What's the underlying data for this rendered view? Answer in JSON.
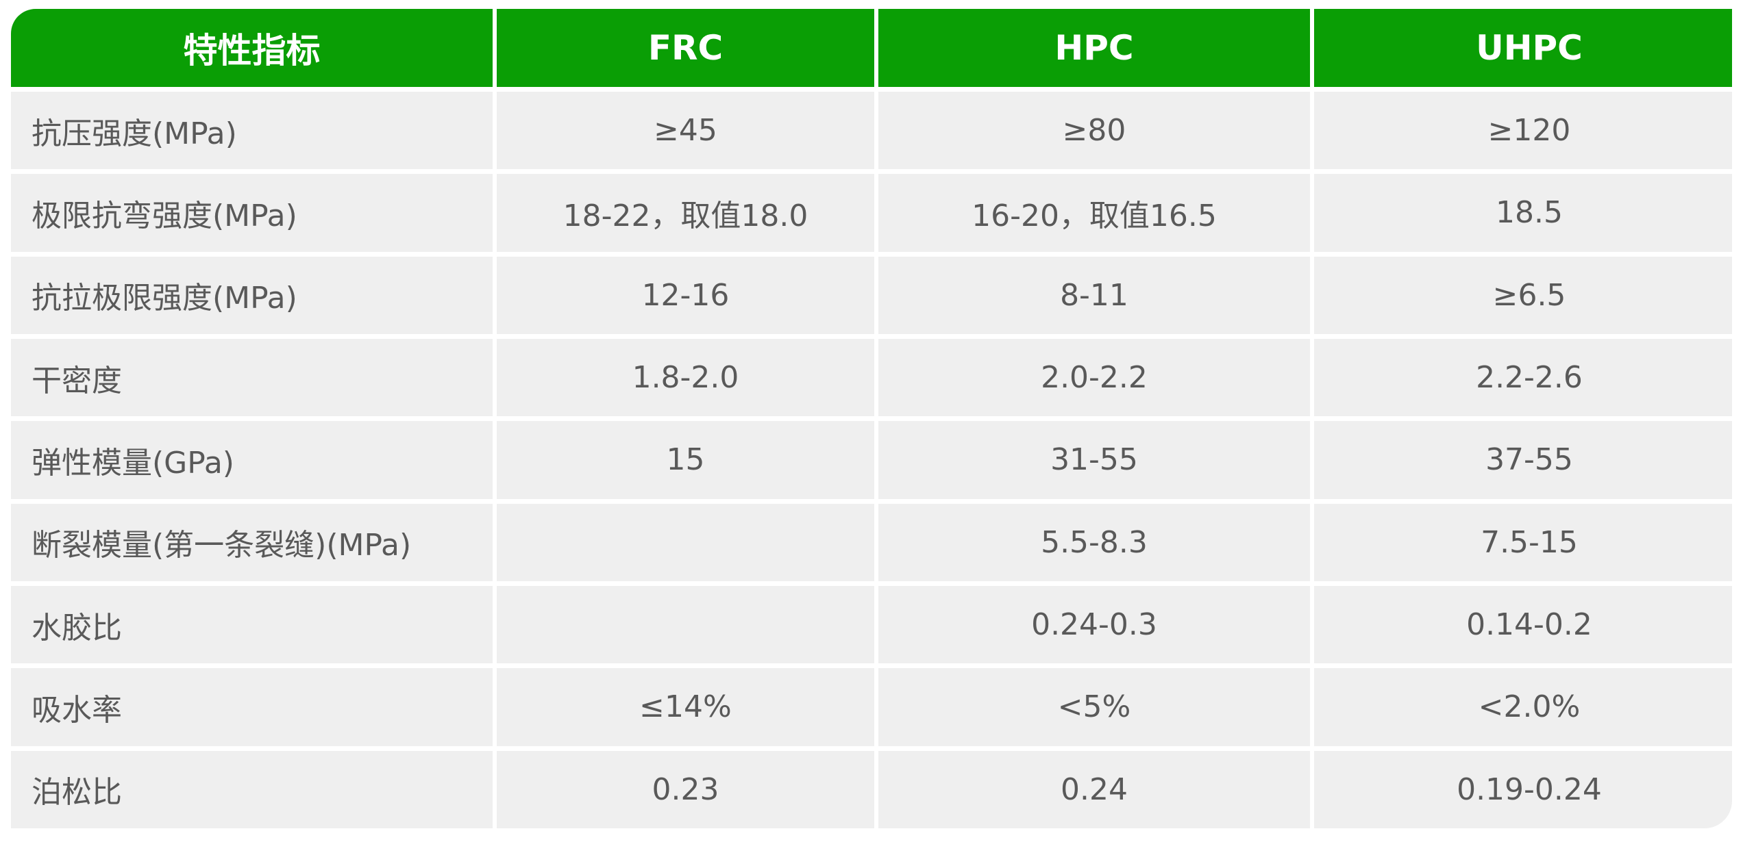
{
  "colors": {
    "header_bg": "#0a9e05",
    "cell_bg": "#efefef",
    "text": "#595959",
    "header_text": "#ffffff"
  },
  "table": {
    "headers": [
      "特性指标",
      "FRC",
      "HPC",
      "UHPC"
    ],
    "rows": [
      [
        "抗压强度(MPa)",
        "≥45",
        "≥80",
        "≥120"
      ],
      [
        "极限抗弯强度(MPa)",
        "18-22，取值18.0",
        "16-20，取值16.5",
        "18.5"
      ],
      [
        "抗拉极限强度(MPa)",
        "12-16",
        "8-11",
        "≥6.5"
      ],
      [
        "干密度",
        "1.8-2.0",
        "2.0-2.2",
        "2.2-2.6"
      ],
      [
        "弹性模量(GPa)",
        "15",
        "31-55",
        "37-55"
      ],
      [
        "断裂模量(第一条裂缝)(MPa)",
        "",
        "5.5-8.3",
        "7.5-15"
      ],
      [
        "水胶比",
        "",
        "0.24-0.3",
        "0.14-0.2"
      ],
      [
        "吸水率",
        "≤14%",
        "<5%",
        "<2.0%"
      ],
      [
        "泊松比",
        "0.23",
        "0.24",
        "0.19-0.24"
      ]
    ]
  }
}
